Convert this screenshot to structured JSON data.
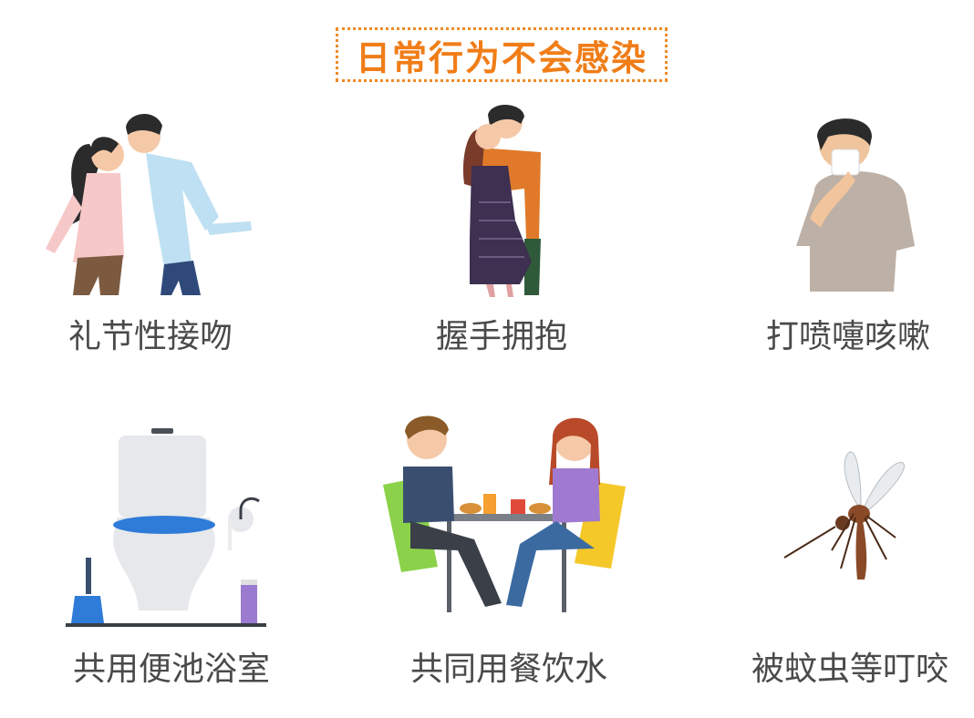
{
  "title": "日常行为不会感染",
  "items": [
    {
      "label": "礼节性接吻",
      "icon": "kissing-couple-icon"
    },
    {
      "label": "握手拥抱",
      "icon": "hugging-couple-icon"
    },
    {
      "label": "打喷嚏咳嗽",
      "icon": "sneezing-person-icon"
    },
    {
      "label": "共用便池浴室",
      "icon": "toilet-icon"
    },
    {
      "label": "共同用餐饮水",
      "icon": "dining-couple-icon"
    },
    {
      "label": "被蚊虫等叮咬",
      "icon": "mosquito-icon"
    }
  ],
  "colors": {
    "accent": "#f07d18",
    "caption": "#4a4a4a"
  }
}
